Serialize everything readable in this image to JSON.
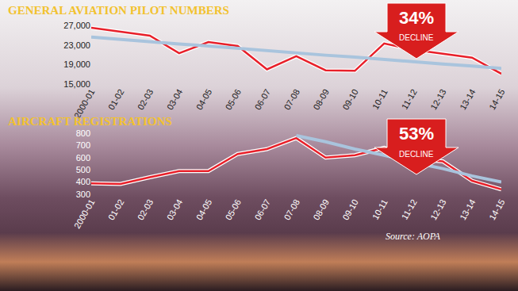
{
  "chart_data": [
    {
      "type": "line",
      "title": "GENERAL AVIATION PILOT NUMBERS",
      "categories": [
        "2000-01",
        "01-02",
        "02-03",
        "03-04",
        "04-05",
        "05-06",
        "06-07",
        "07-08",
        "08-09",
        "09-10",
        "10-11",
        "11-12",
        "12-13",
        "13-14",
        "14-15"
      ],
      "series": [
        {
          "color": "#e8202a",
          "line_style": "solid",
          "values": [
            26500,
            25700,
            24900,
            21300,
            23600,
            22800,
            18000,
            20700,
            17800,
            17700,
            23300,
            22000,
            21200,
            20400,
            17100
          ]
        },
        {
          "color": "#a9c4dd",
          "line_style": "solid",
          "values": [
            24600,
            24100,
            23700,
            23200,
            22800,
            22300,
            21900,
            21400,
            20900,
            20500,
            20000,
            19600,
            19100,
            18700,
            18200
          ]
        }
      ],
      "ylim": [
        15000,
        27000
      ],
      "yticks": [
        {
          "value": 15000,
          "label": "15,000"
        },
        {
          "value": 19000,
          "label": "19,000"
        },
        {
          "value": 23000,
          "label": "23,000"
        },
        {
          "value": 27000,
          "label": "27,000"
        }
      ],
      "grid": false,
      "annotations": [
        "34%",
        "DECLINE"
      ]
    },
    {
      "type": "line",
      "title": "AIRCRAFT REGISTRATIONS",
      "categories": [
        "2000-01",
        "01-02",
        "02-03",
        "03-04",
        "04-05",
        "05-06",
        "06-07",
        "07-08",
        "08-09",
        "09-10",
        "10-11",
        "11-12",
        "12-13",
        "13-14",
        "14-15"
      ],
      "series": [
        {
          "color": "#e8202a",
          "line_style": "solid",
          "values": [
            390,
            385,
            440,
            490,
            490,
            630,
            670,
            760,
            600,
            620,
            680,
            590,
            570,
            410,
            340
          ]
        },
        {
          "color": "#a9c4dd",
          "line_style": "solid",
          "values": [
            null,
            null,
            null,
            null,
            null,
            null,
            null,
            780,
            730,
            670,
            620,
            560,
            510,
            450,
            400
          ]
        }
      ],
      "ylim": [
        300,
        800
      ],
      "yticks": [
        300,
        400,
        500,
        600,
        700,
        800
      ],
      "grid": false,
      "annotations": [
        "53%",
        "DECLINE"
      ]
    }
  ],
  "source": "Source: AOPA"
}
